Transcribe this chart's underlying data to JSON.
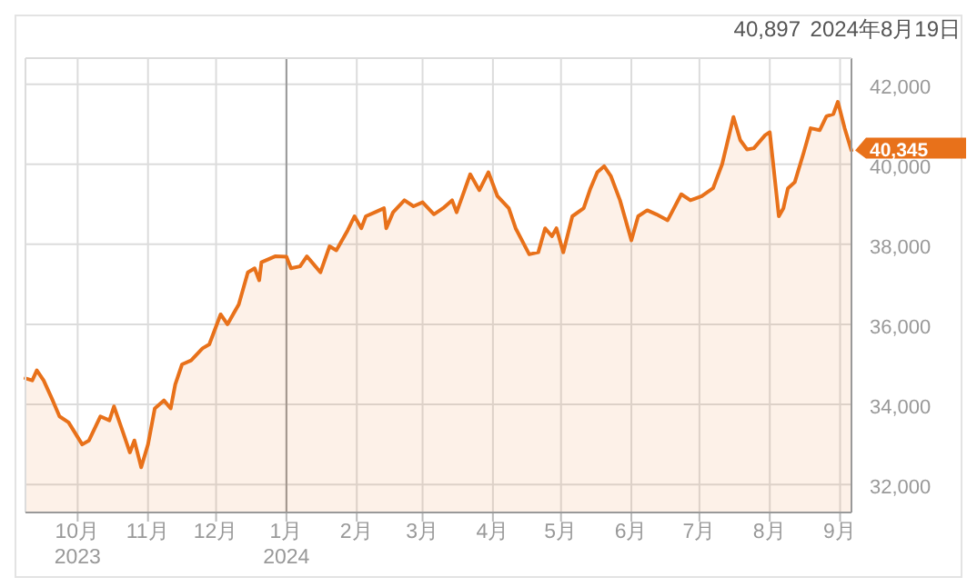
{
  "chart_data": {
    "type": "area",
    "x": [
      "2023-09-08",
      "2023-09-11",
      "2023-09-13",
      "2023-09-16",
      "2023-09-20",
      "2023-09-23",
      "2023-09-27",
      "2023-10-03",
      "2023-10-06",
      "2023-10-11",
      "2023-10-15",
      "2023-10-17",
      "2023-10-21",
      "2023-10-24",
      "2023-10-26",
      "2023-10-29",
      "2023-11-01",
      "2023-11-04",
      "2023-11-08",
      "2023-11-11",
      "2023-11-13",
      "2023-11-16",
      "2023-11-20",
      "2023-11-25",
      "2023-11-28",
      "2023-12-03",
      "2023-12-06",
      "2023-12-11",
      "2023-12-15",
      "2023-12-18",
      "2023-12-20",
      "2023-12-21",
      "2023-12-27",
      "2024-01-01",
      "2024-01-03",
      "2024-01-07",
      "2024-01-10",
      "2024-01-13",
      "2024-01-16",
      "2024-01-20",
      "2024-01-23",
      "2024-01-28",
      "2024-01-31",
      "2024-02-03",
      "2024-02-05",
      "2024-02-09",
      "2024-02-13",
      "2024-02-14",
      "2024-02-17",
      "2024-02-22",
      "2024-02-26",
      "2024-03-01",
      "2024-03-06",
      "2024-03-10",
      "2024-03-14",
      "2024-03-16",
      "2024-03-22",
      "2024-03-26",
      "2024-03-30",
      "2024-04-03",
      "2024-04-08",
      "2024-04-11",
      "2024-04-17",
      "2024-04-21",
      "2024-04-24",
      "2024-04-27",
      "2024-04-29",
      "2024-05-02",
      "2024-05-06",
      "2024-05-11",
      "2024-05-14",
      "2024-05-17",
      "2024-05-20",
      "2024-05-23",
      "2024-05-27",
      "2024-06-01",
      "2024-06-04",
      "2024-06-08",
      "2024-06-12",
      "2024-06-17",
      "2024-06-23",
      "2024-06-27",
      "2024-07-02",
      "2024-07-07",
      "2024-07-11",
      "2024-07-16",
      "2024-07-19",
      "2024-07-22",
      "2024-07-25",
      "2024-07-30",
      "2024-08-01",
      "2024-08-05",
      "2024-08-07",
      "2024-08-09",
      "2024-08-12",
      "2024-08-16",
      "2024-08-19",
      "2024-08-23",
      "2024-08-26",
      "2024-08-29",
      "2024-08-31",
      "2024-09-03",
      "2024-09-06"
    ],
    "series": [
      {
        "color": "#e8711a",
        "values": [
          34650,
          34600,
          34850,
          34600,
          34100,
          33700,
          33550,
          33000,
          33100,
          33700,
          33600,
          33950,
          33300,
          32800,
          33100,
          32430,
          33000,
          33900,
          34100,
          33900,
          34500,
          35000,
          35100,
          35400,
          35500,
          36250,
          36000,
          36500,
          37300,
          37400,
          37100,
          37550,
          37700,
          37690,
          37400,
          37450,
          37700,
          37500,
          37300,
          37950,
          37850,
          38350,
          38700,
          38400,
          38700,
          38800,
          38900,
          38400,
          38800,
          39100,
          38950,
          39050,
          38750,
          38900,
          39100,
          38800,
          39750,
          39350,
          39800,
          39200,
          38900,
          38400,
          37750,
          37800,
          38400,
          38200,
          38400,
          37800,
          38700,
          38900,
          39400,
          39800,
          39950,
          39700,
          39100,
          38100,
          38700,
          38850,
          38750,
          38600,
          39250,
          39100,
          39200,
          39400,
          40000,
          41180,
          40600,
          40370,
          40400,
          40730,
          40800,
          38700,
          38900,
          39400,
          39550,
          40300,
          40900,
          40850,
          41200,
          41250,
          41560,
          40900,
          40345
        ]
      }
    ],
    "xlim": [
      "2023-09-08",
      "2024-09-06"
    ],
    "xticks": [
      {
        "value": "2023-10-01",
        "label": "10月\n2023"
      },
      {
        "value": "2023-11-01",
        "label": "11月"
      },
      {
        "value": "2023-12-01",
        "label": "12月"
      },
      {
        "value": "2024-01-01",
        "label": "1月\n2024"
      },
      {
        "value": "2024-02-01",
        "label": "2月"
      },
      {
        "value": "2024-03-01",
        "label": "3月"
      },
      {
        "value": "2024-04-01",
        "label": "4月"
      },
      {
        "value": "2024-05-01",
        "label": "5月"
      },
      {
        "value": "2024-06-01",
        "label": "6月"
      },
      {
        "value": "2024-07-01",
        "label": "7月"
      },
      {
        "value": "2024-08-01",
        "label": "8月"
      },
      {
        "value": "2024-09-01",
        "label": "9月"
      }
    ],
    "ylim": [
      31300,
      42650
    ],
    "yticks": [
      {
        "value": 32000,
        "label": "32,000"
      },
      {
        "value": 34000,
        "label": "34,000"
      },
      {
        "value": 36000,
        "label": "36,000"
      },
      {
        "value": 38000,
        "label": "38,000"
      },
      {
        "value": 40000,
        "label": "40,000"
      },
      {
        "value": 42000,
        "label": "42,000"
      }
    ],
    "grid": true,
    "ref_lines": [
      {
        "axis": "x",
        "value": "2024-01-01",
        "color": "#999999"
      }
    ],
    "annotations": [
      "40,897",
      "2024年8月19日",
      {
        "text": "40,345",
        "x": "2024-09-06",
        "y": 40345
      }
    ]
  }
}
